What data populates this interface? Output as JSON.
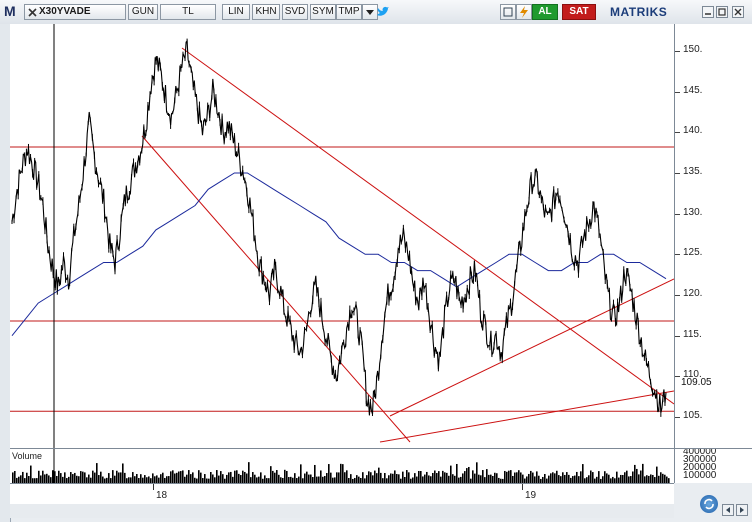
{
  "toolbar": {
    "brand_letter": "M",
    "symbol": "X30YVADE",
    "period": "GUN",
    "currency": "TL",
    "scale_lin": "LIN",
    "khn": "KHN",
    "svd": "SVD",
    "sym": "SYM",
    "tmp": "TMP",
    "buy_label": "AL",
    "sell_label": "SAT",
    "app_name": "MATRIKS"
  },
  "volume": {
    "label": "Volume",
    "ticks": [
      "400000",
      "300000",
      "200000",
      "100000"
    ]
  },
  "price_tag": "109.05",
  "x_labels": [
    "18",
    "19"
  ],
  "colors": {
    "price": "#000000",
    "ma": "#1c2a9c",
    "trendline": "#cc1010",
    "hline": "#c21818",
    "volume": "#000000"
  },
  "chart_data": {
    "type": "line",
    "title": "",
    "xlabel": "",
    "ylabel": "",
    "ylim": [
      101,
      153
    ],
    "yticks": [
      105,
      110,
      115,
      120,
      125,
      130,
      135,
      140,
      145,
      150
    ],
    "series": [
      {
        "name": "",
        "values": [
          129,
          133,
          136,
          138,
          136,
          134,
          131,
          126,
          123,
          121,
          124,
          122,
          127,
          131,
          136,
          141,
          137,
          134,
          131,
          126,
          124,
          128,
          132,
          134,
          136,
          138,
          141,
          146,
          149,
          147,
          144,
          142,
          145,
          148,
          150,
          146,
          143,
          140,
          142,
          145,
          143,
          140,
          141,
          139,
          137,
          135,
          132,
          128,
          124,
          122,
          120,
          123,
          121,
          118,
          116,
          114,
          113,
          115,
          119,
          121,
          118,
          115,
          112,
          110,
          113,
          116,
          119,
          117,
          113,
          107,
          106,
          110,
          116,
          120,
          122,
          126,
          127,
          125,
          121,
          119,
          122,
          118,
          114,
          112,
          117,
          121,
          122,
          119,
          120,
          122,
          123,
          118,
          116,
          114,
          115,
          113,
          116,
          119,
          123,
          127,
          131,
          134,
          134,
          131,
          129,
          131,
          133,
          131,
          128,
          125,
          124,
          127,
          129,
          131,
          128,
          123,
          119,
          117,
          119,
          123,
          121,
          118,
          115,
          112,
          110,
          108,
          106,
          108
        ]
      },
      {
        "name": "",
        "values": [
          115,
          117,
          119,
          120,
          121,
          122,
          123,
          124,
          124,
          125,
          126,
          128,
          129,
          130,
          131,
          133,
          134,
          135,
          135,
          134,
          133,
          132,
          131,
          130,
          129,
          127,
          126,
          125,
          125,
          124,
          124,
          123,
          123,
          122,
          121,
          122,
          123,
          124,
          125,
          125,
          124,
          123,
          123,
          124,
          124,
          125,
          125,
          124,
          124,
          123,
          122
        ]
      }
    ],
    "horizontal_lines": [
      138.2,
      116.8,
      105.7
    ],
    "grid": false,
    "legend": "none"
  }
}
